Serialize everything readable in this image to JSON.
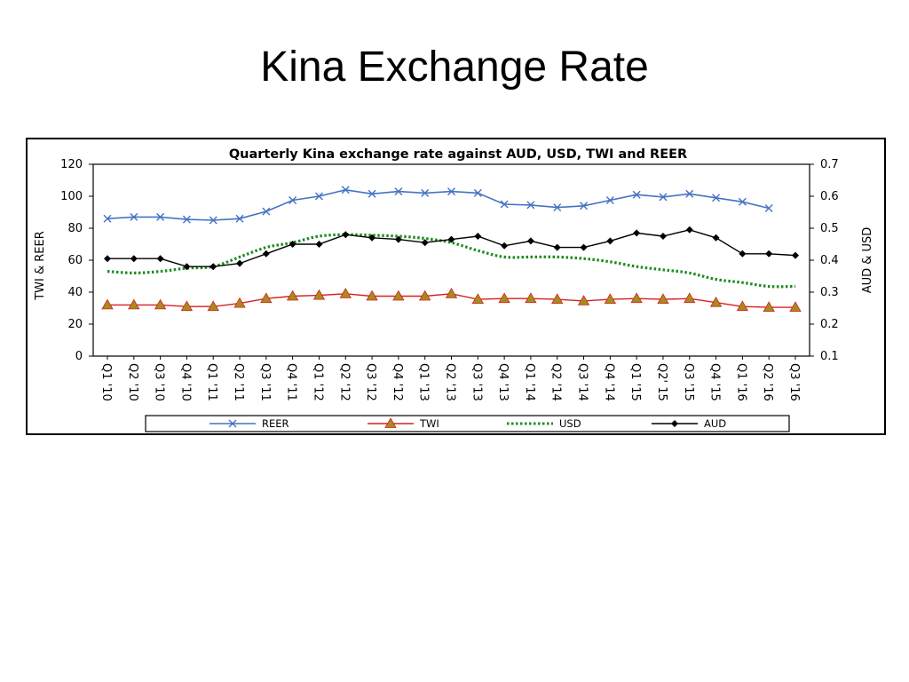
{
  "slide": {
    "title": "Kina Exchange Rate"
  },
  "colors": {
    "reer": "#4472C4",
    "twi_line": "#D62020",
    "twi_marker": "#A68B1E",
    "usd": "#1E8C1E",
    "aud": "#000000"
  },
  "chart_data": {
    "type": "line",
    "title": "Quarterly Kina exchange rate against AUD,  USD, TWI and REER",
    "ylabel_left": "TWI & REER",
    "ylabel_right": "AUD & USD",
    "ylim_left": [
      0,
      120
    ],
    "yticks_left": [
      "0",
      "20",
      "40",
      "60",
      "80",
      "100",
      "120"
    ],
    "ylim_right": [
      0.1,
      0.7
    ],
    "yticks_right": [
      "0.1",
      "0.2",
      "0.3",
      "0.4",
      "0.5",
      "0.6",
      "0.7"
    ],
    "grid": false,
    "legend_position": "bottom",
    "categories": [
      "Q1 '10",
      "Q2 '10",
      "Q3 '10",
      "Q4 '10",
      "Q1 '11",
      "Q2 '11",
      "Q3 '11",
      "Q4 '11",
      "Q1 '12",
      "Q2 '12",
      "Q3 '12",
      "Q4 '12",
      "Q1 '13",
      "Q2 '13",
      "Q3 '13",
      "Q4 '13",
      "Q1 '14",
      "Q2 '14",
      "Q3 '14",
      "Q4 '14",
      "Q1 '15",
      "Q2' 15",
      "Q3 '15",
      "Q4 '15",
      "Q1 '16",
      "Q2 '16",
      "Q3 '16"
    ],
    "series": [
      {
        "name": "REER",
        "axis": "left",
        "values": [
          86,
          87,
          87,
          85.5,
          85,
          86,
          90.5,
          97.5,
          100,
          104,
          101.5,
          103,
          102,
          103,
          102,
          95,
          94.5,
          93,
          94,
          97.5,
          101,
          99.5,
          101.5,
          99,
          96.5,
          92.5,
          null
        ]
      },
      {
        "name": "TWI",
        "axis": "left",
        "values": [
          32,
          32,
          32,
          31,
          31,
          33,
          36,
          37.5,
          38,
          39,
          37.5,
          37.5,
          37.5,
          39,
          35.5,
          36,
          36,
          35.5,
          34.5,
          35.5,
          36,
          35.5,
          36,
          33.5,
          31,
          30.5,
          30.5
        ]
      },
      {
        "name": "USD",
        "axis": "right",
        "values": [
          0.365,
          0.36,
          0.365,
          0.375,
          0.38,
          0.41,
          0.44,
          0.455,
          0.475,
          0.48,
          0.478,
          0.475,
          0.468,
          0.455,
          0.43,
          0.41,
          0.41,
          0.41,
          0.405,
          0.395,
          0.38,
          0.37,
          0.36,
          0.34,
          0.33,
          0.318,
          0.318
        ]
      },
      {
        "name": "AUD",
        "axis": "right",
        "values": [
          0.405,
          0.405,
          0.405,
          0.38,
          0.38,
          0.39,
          0.42,
          0.45,
          0.45,
          0.48,
          0.47,
          0.465,
          0.455,
          0.465,
          0.475,
          0.445,
          0.46,
          0.44,
          0.44,
          0.46,
          0.485,
          0.475,
          0.495,
          0.47,
          0.42,
          0.42,
          0.415
        ]
      }
    ]
  }
}
